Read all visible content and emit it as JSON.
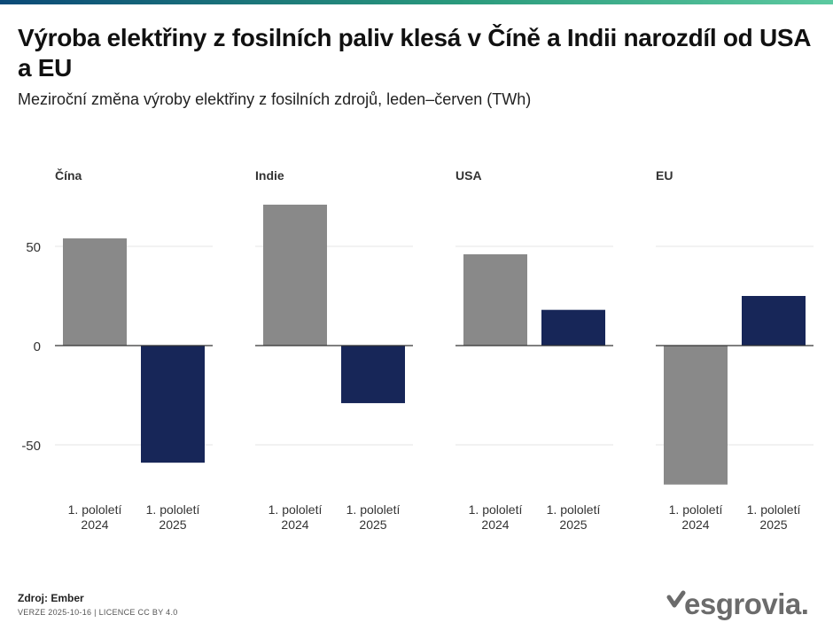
{
  "header": {
    "title": "Výroba elektřiny z fosilních paliv klesá v Číně a Indii narozdíl od USA a EU",
    "subtitle": "Meziroční změna výroby elektřiny z fosilních zdrojů, leden–červen (TWh)"
  },
  "colors": {
    "bar_2024": "#898989",
    "bar_2025": "#172658",
    "grid": "#e4e4e4",
    "zero_line": "#333333",
    "topbar_start": "#0b4a78",
    "topbar_mid": "#2a9a7c",
    "topbar_end": "#5cc9a0"
  },
  "chart_data": {
    "type": "bar",
    "ylabel": "TWh",
    "ylim": [
      -80,
      80
    ],
    "yticks": [
      50,
      0,
      -50
    ],
    "ytick_labels": [
      "50",
      "0",
      "-50"
    ],
    "categories": [
      [
        "1. pololetí",
        "2024"
      ],
      [
        "1. pololetí",
        "2025"
      ]
    ],
    "panels": [
      {
        "name": "Čína",
        "values": [
          54,
          -59
        ]
      },
      {
        "name": "Indie",
        "values": [
          71,
          -29
        ]
      },
      {
        "name": "USA",
        "values": [
          46,
          18
        ]
      },
      {
        "name": "EU",
        "values": [
          -70,
          25
        ]
      }
    ]
  },
  "footer": {
    "source_label": "Zdroj:",
    "source_name": "Ember",
    "version": "VERZE 2025-10-16 | LICENCE CC BY 4.0"
  },
  "logo": {
    "text": "esgrovia.",
    "icon": "checkmark-icon"
  }
}
